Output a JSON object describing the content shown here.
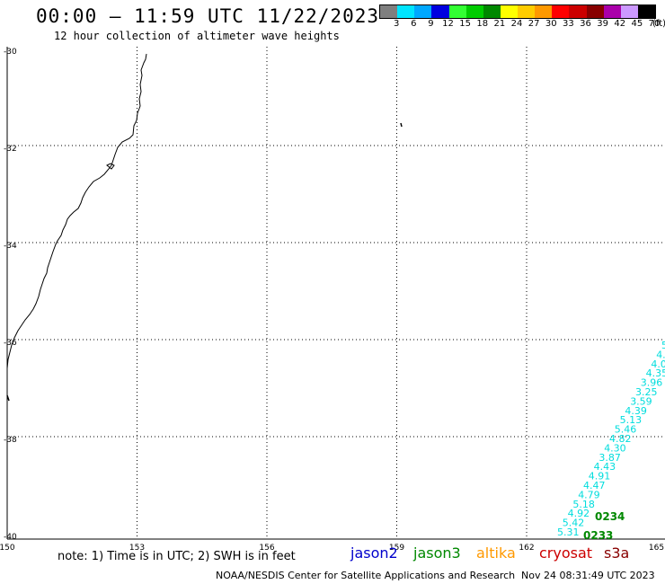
{
  "title": "00:00 — 11:59 UTC 11/22/2023",
  "subtitle": "12 hour collection of altimeter wave heights",
  "legend": {
    "unit": "(ft)",
    "bins": [
      {
        "label": "3",
        "color": "#7f7f7f"
      },
      {
        "label": "6",
        "color": "#00e5ff"
      },
      {
        "label": "9",
        "color": "#00a8ff"
      },
      {
        "label": "12",
        "color": "#0000e0"
      },
      {
        "label": "15",
        "color": "#33ff33"
      },
      {
        "label": "18",
        "color": "#00cc00"
      },
      {
        "label": "21",
        "color": "#008800"
      },
      {
        "label": "24",
        "color": "#ffff00"
      },
      {
        "label": "27",
        "color": "#ffcc00"
      },
      {
        "label": "30",
        "color": "#ff9900"
      },
      {
        "label": "33",
        "color": "#ff0000"
      },
      {
        "label": "36",
        "color": "#cc0000"
      },
      {
        "label": "39",
        "color": "#880000"
      },
      {
        "label": "42",
        "color": "#aa00aa"
      },
      {
        "label": "45",
        "color": "#cc99ff"
      },
      {
        "label": "70",
        "color": "#000000"
      }
    ]
  },
  "map": {
    "lon_labels": [
      "150",
      "153",
      "156",
      "159",
      "162",
      "165"
    ],
    "lat_labels": [
      "-30",
      "-32",
      "-34",
      "-36",
      "-38",
      "-40"
    ]
  },
  "track": {
    "color": "#00dddd",
    "heights": [
      "5",
      "4.",
      "4.0",
      "4.35",
      "3.96",
      "3.25",
      "3.59",
      "4.39",
      "5.13",
      "5.46",
      "4.82",
      "4.30",
      "3.87",
      "4.43",
      "4.91",
      "4.47",
      "4.79",
      "5.18",
      "4.92",
      "5.42",
      "5.31"
    ],
    "times": [
      "0234",
      "0233"
    ],
    "time_color": "#008800"
  },
  "note": "note: 1) Time is in UTC; 2) SWH is in feet",
  "satellites": [
    {
      "name": "jason2",
      "color": "#0000cc"
    },
    {
      "name": "jason3",
      "color": "#008800"
    },
    {
      "name": "altika",
      "color": "#ff9900"
    },
    {
      "name": "cryosat",
      "color": "#cc0000"
    },
    {
      "name": "s3a",
      "color": "#880000"
    }
  ],
  "credit": "NOAA/NESDIS Center for Satellite Applications and Research",
  "timestamp": "Nov 24 08:31:49 UTC 2023"
}
